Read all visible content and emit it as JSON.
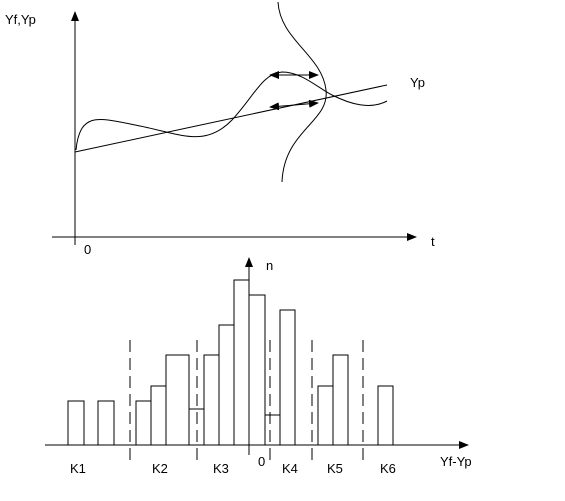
{
  "top_plot": {
    "y_axis_label": "Yf,Yp",
    "origin_label": "0",
    "x_axis_label": "t",
    "line_label": "Yp"
  },
  "histogram": {
    "y_axis_label": "n",
    "origin_label": "0",
    "x_axis_label": "Yf-Yp",
    "intervals": [
      "K1",
      "K2",
      "K3",
      "K4",
      "K5",
      "K6"
    ]
  }
}
